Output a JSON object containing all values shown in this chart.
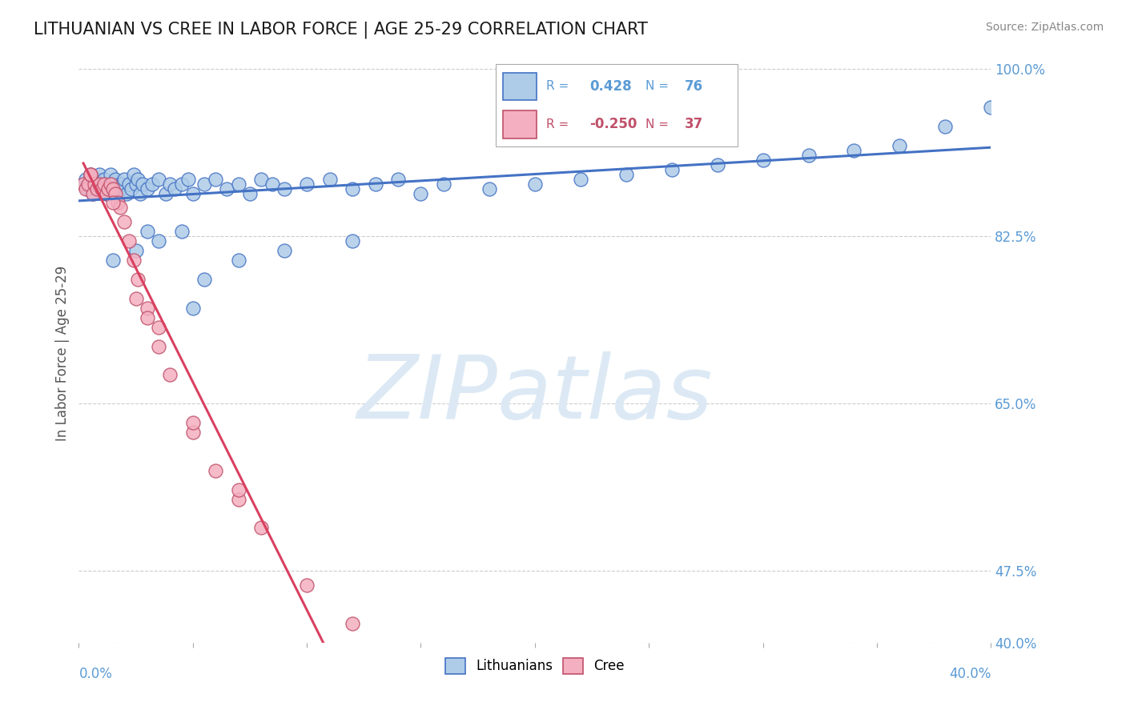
{
  "title": "LITHUANIAN VS CREE IN LABOR FORCE | AGE 25-29 CORRELATION CHART",
  "source_text": "Source: ZipAtlas.com",
  "ylabel": "In Labor Force | Age 25-29",
  "xlim": [
    0.0,
    0.4
  ],
  "ylim": [
    0.4,
    1.005
  ],
  "ytick_right_vals": [
    1.0,
    0.825,
    0.65,
    0.475,
    0.4
  ],
  "ytick_right_labels": [
    "100.0%",
    "82.5%",
    "65.0%",
    "47.5%",
    "40.0%"
  ],
  "xtick_vals": [
    0.0,
    0.05,
    0.1,
    0.15,
    0.2,
    0.25,
    0.3,
    0.35,
    0.4
  ],
  "title_color": "#1a1a1a",
  "title_fontsize": 15,
  "axis_color": "#5b9bd5",
  "watermark": "ZIPatlas",
  "watermark_color": "#dce9f5",
  "watermark_fontsize": 80,
  "legend_R_blue": "0.428",
  "legend_N_blue": "76",
  "legend_R_pink": "-0.250",
  "legend_N_pink": "37",
  "blue_face": "#aecce8",
  "blue_edge": "#4472c4",
  "pink_face": "#f4afc0",
  "pink_edge": "#c0506a",
  "trend_blue": "#4472c4",
  "trend_pink": "#d94060",
  "trend_gray": "#cccccc",
  "grid_color": "#cccccc",
  "source_color": "#888888",
  "ylabel_color": "#555555",
  "blue_x": [
    0.002,
    0.003,
    0.004,
    0.005,
    0.006,
    0.007,
    0.008,
    0.009,
    0.01,
    0.01,
    0.011,
    0.012,
    0.012,
    0.013,
    0.014,
    0.015,
    0.016,
    0.017,
    0.018,
    0.018,
    0.019,
    0.02,
    0.021,
    0.022,
    0.023,
    0.024,
    0.025,
    0.026,
    0.027,
    0.028,
    0.03,
    0.032,
    0.035,
    0.038,
    0.04,
    0.042,
    0.045,
    0.048,
    0.05,
    0.055,
    0.06,
    0.065,
    0.07,
    0.075,
    0.08,
    0.085,
    0.09,
    0.1,
    0.11,
    0.12,
    0.13,
    0.14,
    0.15,
    0.16,
    0.18,
    0.2,
    0.22,
    0.24,
    0.26,
    0.28,
    0.3,
    0.32,
    0.34,
    0.36,
    0.38,
    0.4,
    0.03,
    0.035,
    0.025,
    0.015,
    0.055,
    0.07,
    0.09,
    0.12,
    0.05,
    0.045
  ],
  "blue_y": [
    0.88,
    0.885,
    0.875,
    0.89,
    0.87,
    0.88,
    0.885,
    0.89,
    0.875,
    0.88,
    0.885,
    0.87,
    0.88,
    0.875,
    0.89,
    0.88,
    0.885,
    0.87,
    0.88,
    0.875,
    0.88,
    0.885,
    0.87,
    0.88,
    0.875,
    0.89,
    0.88,
    0.885,
    0.87,
    0.88,
    0.875,
    0.88,
    0.885,
    0.87,
    0.88,
    0.875,
    0.88,
    0.885,
    0.87,
    0.88,
    0.885,
    0.875,
    0.88,
    0.87,
    0.885,
    0.88,
    0.875,
    0.88,
    0.885,
    0.875,
    0.88,
    0.885,
    0.87,
    0.88,
    0.875,
    0.88,
    0.885,
    0.89,
    0.895,
    0.9,
    0.905,
    0.91,
    0.915,
    0.92,
    0.94,
    0.96,
    0.83,
    0.82,
    0.81,
    0.8,
    0.78,
    0.8,
    0.81,
    0.82,
    0.75,
    0.83
  ],
  "pink_x": [
    0.002,
    0.003,
    0.004,
    0.005,
    0.006,
    0.007,
    0.008,
    0.009,
    0.01,
    0.011,
    0.012,
    0.013,
    0.014,
    0.015,
    0.016,
    0.017,
    0.018,
    0.02,
    0.022,
    0.024,
    0.026,
    0.03,
    0.035,
    0.04,
    0.05,
    0.06,
    0.07,
    0.08,
    0.1,
    0.12,
    0.025,
    0.03,
    0.035,
    0.07,
    0.015,
    0.005,
    0.05
  ],
  "pink_y": [
    0.88,
    0.875,
    0.88,
    0.89,
    0.87,
    0.88,
    0.875,
    0.88,
    0.875,
    0.88,
    0.87,
    0.875,
    0.88,
    0.875,
    0.87,
    0.86,
    0.855,
    0.84,
    0.82,
    0.8,
    0.78,
    0.75,
    0.71,
    0.68,
    0.62,
    0.58,
    0.55,
    0.52,
    0.46,
    0.42,
    0.76,
    0.74,
    0.73,
    0.56,
    0.86,
    0.89,
    0.63
  ],
  "pink_solid_xend": 0.15,
  "pink_dash_xend": 0.4,
  "blue_trend_start": 0.0,
  "blue_trend_end": 0.4
}
